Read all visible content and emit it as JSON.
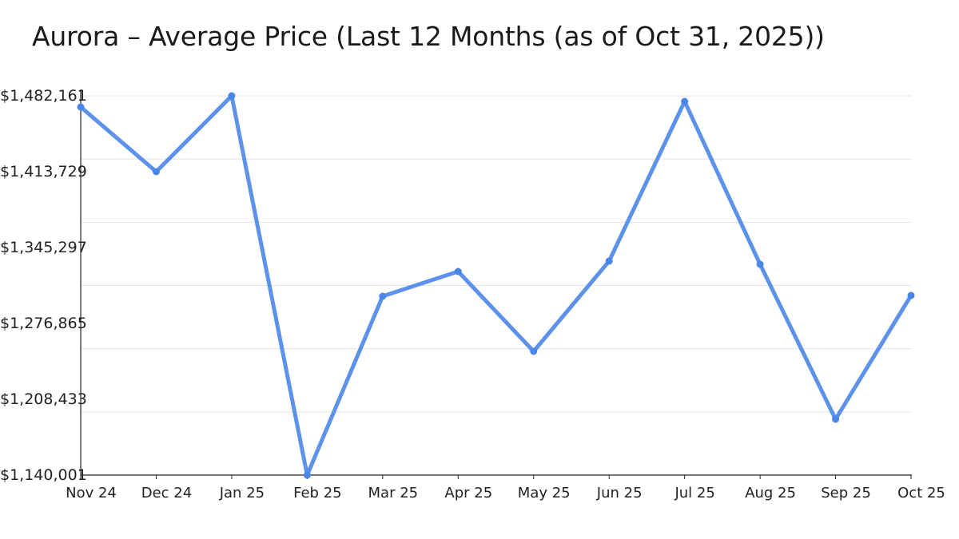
{
  "chart_data": {
    "type": "line",
    "title": "Aurora – Average Price (Last 12 Months (as of Oct 31, 2025))",
    "xlabel": "",
    "ylabel": "",
    "categories": [
      "Nov 24",
      "Dec 24",
      "Jan 25",
      "Feb 25",
      "Mar 25",
      "Apr 25",
      "May 25",
      "Jun 25",
      "Jul 25",
      "Aug 25",
      "Sep 25",
      "Oct 25"
    ],
    "series": [
      {
        "name": "Average Price",
        "color": "#4a86e8",
        "values": [
          1472078,
          1413729,
          1482161,
          1140001,
          1301357,
          1323688,
          1251654,
          1333052,
          1477120,
          1330171,
          1190425,
          1302078
        ]
      }
    ],
    "y_tick_labels": [
      "$1,140,001",
      "$1,208,433",
      "$1,276,865",
      "$1,345,297",
      "$1,413,729",
      "$1,482,161"
    ],
    "ylim": [
      1140001,
      1482161
    ],
    "grid": true,
    "legend": "none"
  },
  "header": {
    "title": "Aurora – Average Price (Last 12 Months (as of Oct 31, 2025))"
  }
}
